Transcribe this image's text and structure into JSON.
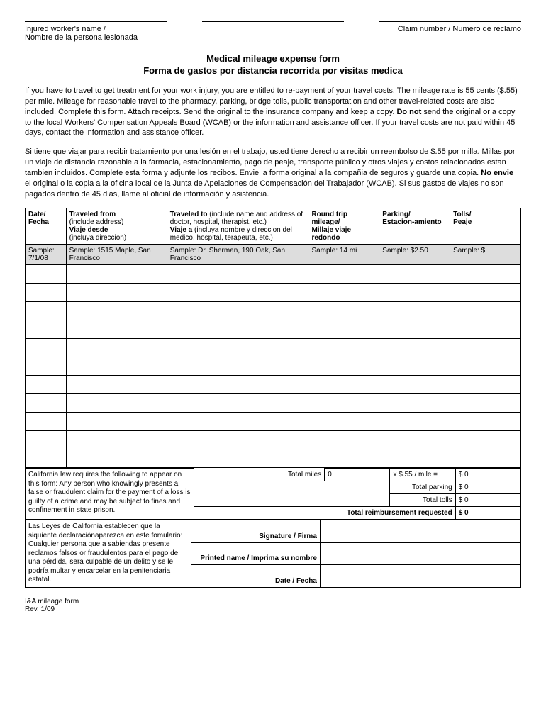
{
  "header": {
    "left_label": "Injured worker's name /",
    "left_label2": "Nombre de la persona lesionada",
    "right_label": "Claim number / Numero de reclamo"
  },
  "title": "Medical mileage expense form",
  "subtitle": "Forma de gastos por distancia recorrida por visitas medica",
  "para_en_1": "If you have to travel to get treatment for your work injury, you are entitled to re-payment of your travel costs. The mileage rate is 55 cents ($.55) per mile. Mileage for reasonable travel to the pharmacy, parking, bridge tolls, public transportation and other travel-related costs are also included. Complete this form. Attach receipts. Send the original to the insurance company and keep a copy. ",
  "para_en_bold": "Do not",
  "para_en_2": " send the original or a copy to the local Workers' Compensation Appeals Board (WCAB) or the information and assistance officer. If your travel costs are not paid within 45 days, contact the information and assistance officer.",
  "para_es_1": "Si tiene que viajar para recibir tratamiento por una lesión en el trabajo, usted tiene derecho a recibir un reembolso de $.55 por milla. Millas por un viaje de distancia  razonable a la farmacia, estacionamiento, pago de peaje, transporte público y otros viajes y costos relacionados estan tambien incluidos. Complete esta forma y adjunte los recibos. Envie la forma original a la compañia de seguros y guarde una copia. ",
  "para_es_bold": "No envie",
  "para_es_2": " el original o la copia a la oficina local de la Junta de Apelaciones de Compensación del Trabajador (WCAB). Si sus gastos de viajes no son pagados dentro de 45 dias, llame al oficial de información y asistencia.",
  "table": {
    "headers": {
      "date_b": "Date/",
      "date_b2": "Fecha",
      "from_b": "Traveled from",
      "from_n": "(include address)",
      "from_b2": "Viaje desde",
      "from_n2": "(incluya direccion)",
      "to_b": "Traveled to",
      "to_n": " (include name and address of doctor, hospital, therapist, etc.)",
      "to_b2": "Viaje a",
      "to_n2": " (incluya nombre y direccion del medico, hospital, terapeuta, etc.)",
      "miles_b": "Round trip mileage/",
      "miles_b2": "Millaje viaje redondo",
      "park_b": "Parking/",
      "park_b2": "Estacion-amiento",
      "tolls_b": "Tolls/",
      "tolls_b2": "Peaje"
    },
    "sample": {
      "date": "Sample: 7/1/08",
      "from": "Sample: 1515 Maple, San Francisco",
      "to": "Sample:  Dr. Sherman,  190 Oak, San Francisco",
      "miles": "Sample: 14 mi",
      "park": "Sample: $2.50",
      "tolls": "Sample: $"
    },
    "blank_rows": 11
  },
  "totals": {
    "legal_en": "California law requires the following to appear on this form: Any person who knowingly presents a false or fraudulent claim for the payment of a loss is guilty of a crime and may be subject to fines and confinement in state prison.",
    "total_miles_label": "Total miles",
    "total_miles_val": "0",
    "rate_label": "x   $.55 / mile   =",
    "rate_val": "$   0",
    "total_parking_label": "Total parking",
    "total_parking_val": "$ 0",
    "total_tolls_label": "Total tolls",
    "total_tolls_val": "$ 0",
    "total_reimb_label": "Total reimbursement requested",
    "total_reimb_val": "$ 0"
  },
  "sig": {
    "legal_es": "Las Leyes de California establecen que la siquiente declaraciónaparezca en este fomulario: Cualquier persona que a sabiendas presente reclamos falsos or fraudulentos para el pago de una pérdida, sera culpable de un delito y se le podría multar y encarcelar en la penitenciaria estatal.",
    "signature_label": "Signature /  Firma",
    "printed_label": "Printed name /  Imprima su nombre",
    "date_label": "Date /  Fecha"
  },
  "footer": {
    "line1": "I&A mileage form",
    "line2": "Rev. 1/09"
  }
}
